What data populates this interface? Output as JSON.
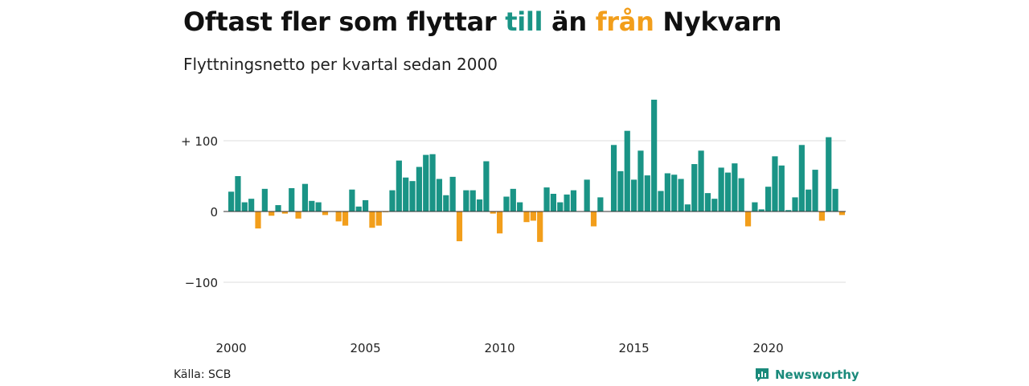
{
  "title": {
    "part1": "Oftast fler som flyttar ",
    "to": "till",
    "middle": " än ",
    "from": "från",
    "part2": " Nykvarn"
  },
  "subtitle": "Flyttningsnetto per kvartal sedan 2000",
  "source": "Källa: SCB",
  "brand": {
    "name": "Newsworthy",
    "icon": "newsworthy-logo-icon"
  },
  "colors": {
    "positive": "#1a9486",
    "negative": "#f29e1b",
    "grid": "#dddddd",
    "zero": "#333333"
  },
  "chart_data": {
    "type": "bar",
    "title": "",
    "xlabel": "",
    "ylabel": "",
    "ylim": [
      -140,
      160
    ],
    "yticks": [
      100,
      0,
      -100
    ],
    "ytick_labels": [
      "+ 100",
      "0",
      "−100"
    ],
    "xticks": [
      2000,
      2005,
      2010,
      2015,
      2020
    ],
    "xtick_labels": [
      "2000",
      "2005",
      "2010",
      "2015",
      "2020"
    ],
    "grid": true,
    "legend": "none",
    "quarters_start": "2000 Q1",
    "values": [
      28,
      50,
      13,
      18,
      -24,
      32,
      -6,
      9,
      -3,
      33,
      -10,
      39,
      15,
      13,
      -5,
      0,
      -14,
      -20,
      31,
      7,
      16,
      -23,
      -20,
      -1,
      30,
      72,
      48,
      43,
      63,
      80,
      81,
      46,
      23,
      49,
      -42,
      30,
      30,
      17,
      71,
      -3,
      -31,
      21,
      32,
      13,
      -15,
      -13,
      -43,
      34,
      25,
      13,
      24,
      30,
      0,
      45,
      -21,
      20,
      0,
      94,
      57,
      114,
      45,
      86,
      51,
      158,
      29,
      54,
      52,
      46,
      10,
      67,
      86,
      26,
      18,
      62,
      55,
      68,
      47,
      -21,
      13,
      3,
      35,
      78,
      65,
      2,
      20,
      94,
      31,
      59,
      -13,
      105,
      32,
      -5
    ]
  }
}
